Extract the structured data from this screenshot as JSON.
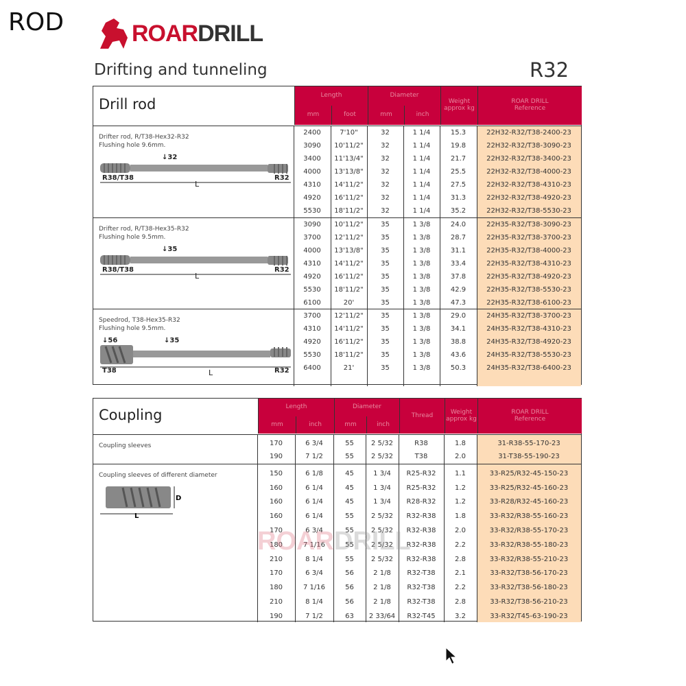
{
  "corner_label": "ROD",
  "brand": {
    "part1": "ROAR",
    "part2": "DRILL",
    "color": "#c8102e"
  },
  "subtitle": "Drifting and tunneling",
  "model": "R32",
  "colors": {
    "header": "#c8003c",
    "reference_bg": "#fddcb8"
  },
  "drill_rod": {
    "title": "Drill rod",
    "headers": {
      "length": "Length",
      "length_mm": "mm",
      "length_foot": "foot",
      "diameter": "Diameter",
      "diameter_mm": "mm",
      "diameter_inch": "inch",
      "weight": "Weight approx kg",
      "reference": "ROAR DRILL Reference"
    },
    "sections": [
      {
        "desc": [
          "Drifter rod, R/T38-Hex32-R32",
          "Flushing hole 9.6mm."
        ],
        "diagram": {
          "dia": "32",
          "left": "R38/T38",
          "right": "R32",
          "length": "L"
        },
        "rows": [
          [
            "2400",
            "7'10\"",
            "32",
            "1 1/4",
            "15.3",
            "22H32-R32/T38-2400-23"
          ],
          [
            "3090",
            "10'11/2\"",
            "32",
            "1 1/4",
            "19.8",
            "22H32-R32/T38-3090-23"
          ],
          [
            "3400",
            "11'13/4\"",
            "32",
            "1 1/4",
            "21.7",
            "22H32-R32/T38-3400-23"
          ],
          [
            "4000",
            "13'13/8\"",
            "32",
            "1 1/4",
            "25.5",
            "22H32-R32/T38-4000-23"
          ],
          [
            "4310",
            "14'11/2\"",
            "32",
            "1 1/4",
            "27.5",
            "22H32-R32/T38-4310-23"
          ],
          [
            "4920",
            "16'11/2\"",
            "32",
            "1 1/4",
            "31.3",
            "22H32-R32/T38-4920-23"
          ],
          [
            "5530",
            "18'11/2\"",
            "32",
            "1 1/4",
            "35.2",
            "22H32-R32/T38-5530-23"
          ]
        ]
      },
      {
        "desc": [
          "Drifter rod, R/T38-Hex35-R32",
          "Flushing hole 9.5mm."
        ],
        "diagram": {
          "dia": "35",
          "left": "R38/T38",
          "right": "R32",
          "length": "L"
        },
        "rows": [
          [
            "3090",
            "10'11/2\"",
            "35",
            "1 3/8",
            "24.0",
            "22H35-R32/T38-3090-23"
          ],
          [
            "3700",
            "12'11/2\"",
            "35",
            "1 3/8",
            "28.7",
            "22H35-R32/T38-3700-23"
          ],
          [
            "4000",
            "13'13/8\"",
            "35",
            "1 3/8",
            "31.1",
            "22H35-R32/T38-4000-23"
          ],
          [
            "4310",
            "14'11/2\"",
            "35",
            "1 3/8",
            "33.4",
            "22H35-R32/T38-4310-23"
          ],
          [
            "4920",
            "16'11/2\"",
            "35",
            "1 3/8",
            "37.8",
            "22H35-R32/T38-4920-23"
          ],
          [
            "5530",
            "18'11/2\"",
            "35",
            "1 3/8",
            "42.9",
            "22H35-R32/T38-5530-23"
          ],
          [
            "6100",
            "20'",
            "35",
            "1 3/8",
            "47.3",
            "22H35-R32/T38-6100-23"
          ]
        ]
      },
      {
        "desc": [
          "Speedrod, T38-Hex35-R32",
          "Flushing hole 9.5mm."
        ],
        "diagram": {
          "dia": "35",
          "dia2": "56",
          "left": "T38",
          "right": "R32",
          "length": "L"
        },
        "rows": [
          [
            "3700",
            "12'11/2\"",
            "35",
            "1 3/8",
            "29.0",
            "24H35-R32/T38-3700-23"
          ],
          [
            "4310",
            "14'11/2\"",
            "35",
            "1 3/8",
            "34.1",
            "24H35-R32/T38-4310-23"
          ],
          [
            "4920",
            "16'11/2\"",
            "35",
            "1 3/8",
            "38.8",
            "24H35-R32/T38-4920-23"
          ],
          [
            "5530",
            "18'11/2\"",
            "35",
            "1 3/8",
            "43.6",
            "24H35-R32/T38-5530-23"
          ],
          [
            "6400",
            "21'",
            "35",
            "1 3/8",
            "50.3",
            "24H35-R32/T38-6400-23"
          ]
        ]
      }
    ]
  },
  "coupling": {
    "title": "Coupling",
    "headers": {
      "length": "Length",
      "length_mm": "mm",
      "length_inch": "inch",
      "diameter": "Diameter",
      "diameter_mm": "mm",
      "diameter_inch": "inch",
      "thread": "Thread",
      "weight": "Weight approx kg",
      "reference": "ROAR DRILL Reference"
    },
    "sections": [
      {
        "desc": [
          "Coupling sleeves"
        ],
        "rows": [
          [
            "170",
            "6 3/4",
            "55",
            "2 5/32",
            "R38",
            "1.8",
            "31-R38-55-170-23"
          ],
          [
            "190",
            "7 1/2",
            "55",
            "2 5/32",
            "T38",
            "2.0",
            "31-T38-55-190-23"
          ]
        ]
      },
      {
        "desc": [
          "Coupling sleeves of different diameter"
        ],
        "diagram": {
          "dia": "D",
          "length": "L"
        },
        "rows": [
          [
            "150",
            "6 1/8",
            "45",
            "1 3/4",
            "R25-R32",
            "1.1",
            "33-R25/R32-45-150-23"
          ],
          [
            "160",
            "6 1/4",
            "45",
            "1 3/4",
            "R25-R32",
            "1.2",
            "33-R25/R32-45-160-23"
          ],
          [
            "160",
            "6 1/4",
            "45",
            "1 3/4",
            "R28-R32",
            "1.2",
            "33-R28/R32-45-160-23"
          ],
          [
            "160",
            "6 1/4",
            "55",
            "2 5/32",
            "R32-R38",
            "1.8",
            "33-R32/R38-55-160-23"
          ],
          [
            "170",
            "6 3/4",
            "55",
            "2 5/32",
            "R32-R38",
            "2.0",
            "33-R32/R38-55-170-23"
          ],
          [
            "180",
            "7 1/16",
            "55",
            "2 5/32",
            "R32-R38",
            "2.2",
            "33-R32/R38-55-180-23"
          ],
          [
            "210",
            "8 1/4",
            "55",
            "2 5/32",
            "R32-R38",
            "2.8",
            "33-R32/R38-55-210-23"
          ],
          [
            "170",
            "6 3/4",
            "56",
            "2 1/8",
            "R32-T38",
            "2.1",
            "33-R32/T38-56-170-23"
          ],
          [
            "180",
            "7 1/16",
            "56",
            "2 1/8",
            "R32-T38",
            "2.2",
            "33-R32/T38-56-180-23"
          ],
          [
            "210",
            "8 1/4",
            "56",
            "2 1/8",
            "R32-T38",
            "2.8",
            "33-R32/T38-56-210-23"
          ],
          [
            "190",
            "7 1/2",
            "63",
            "2 33/64",
            "R32-T45",
            "3.2",
            "33-R32/T45-63-190-23"
          ]
        ]
      }
    ]
  }
}
